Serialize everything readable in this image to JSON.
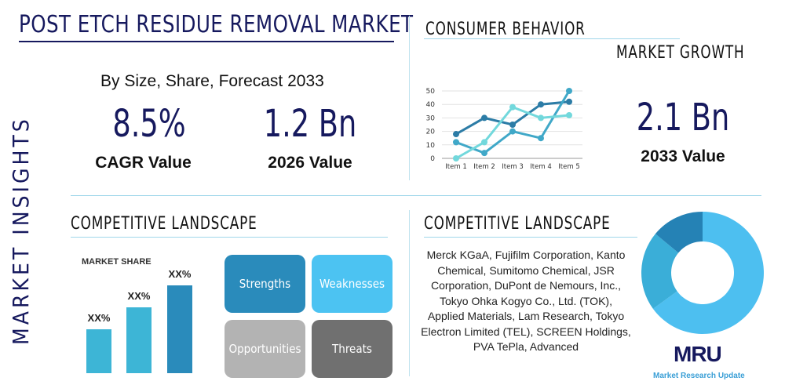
{
  "title": "POST ETCH RESIDUE REMOVAL MARKET",
  "side_label": "MARKET INSIGHTS",
  "subtitle": "By Size, Share, Forecast 2033",
  "cagr": {
    "value": "8.5%",
    "label": "CAGR Value"
  },
  "value_2026": {
    "value": "1.2 Bn",
    "label": "2026 Value"
  },
  "consumer_behavior": "CONSUMER BEHAVIOR",
  "market_growth": "MARKET GROWTH",
  "value_2033": {
    "value": "2.1 Bn",
    "label": "2033 Value"
  },
  "competitive_left": "COMPETITIVE LANDSCAPE",
  "competitive_right": "COMPETITIVE LANDSCAPE",
  "market_share": {
    "title": "MARKET SHARE",
    "labels": [
      "XX%",
      "XX%",
      "XX%"
    ],
    "colors": [
      "#3db5d6",
      "#3db5d6",
      "#2a8bbb"
    ]
  },
  "swot": {
    "strengths": "Strengths",
    "weaknesses": "Weaknesses",
    "opportunities": "Opportunities",
    "threats": "Threats"
  },
  "companies": "Merck KGaA, Fujifilm Corporation, Kanto Chemical, Sumitomo Chemical, JSR Corporation, DuPont de Nemours, Inc., Tokyo Ohka Kogyo Co., Ltd. (TOK), Applied Materials, Lam Research, Tokyo Electron Limited (TEL), SCREEN Holdings, PVA TePla, Advanced",
  "logo": {
    "mark": "MRU",
    "name": "Market Research Update"
  },
  "chart_data": [
    {
      "type": "line",
      "categories": [
        "Item 1",
        "Item 2",
        "Item 3",
        "Item 4",
        "Item 5"
      ],
      "ylim": [
        0,
        50
      ],
      "yticks": [
        0,
        10,
        20,
        30,
        40,
        50
      ],
      "grid": true,
      "series": [
        {
          "color": "#2c7ca6",
          "values": [
            18,
            30,
            25,
            40,
            42
          ]
        },
        {
          "color": "#40a8c8",
          "values": [
            12,
            4,
            20,
            15,
            50
          ]
        },
        {
          "color": "#72d8dc",
          "values": [
            0,
            12,
            38,
            30,
            32
          ]
        }
      ]
    },
    {
      "type": "pie",
      "donut": true,
      "values": [
        65,
        21,
        14
      ],
      "colors": [
        "#4dbff0",
        "#3aaed8",
        "#2582b5"
      ]
    }
  ]
}
